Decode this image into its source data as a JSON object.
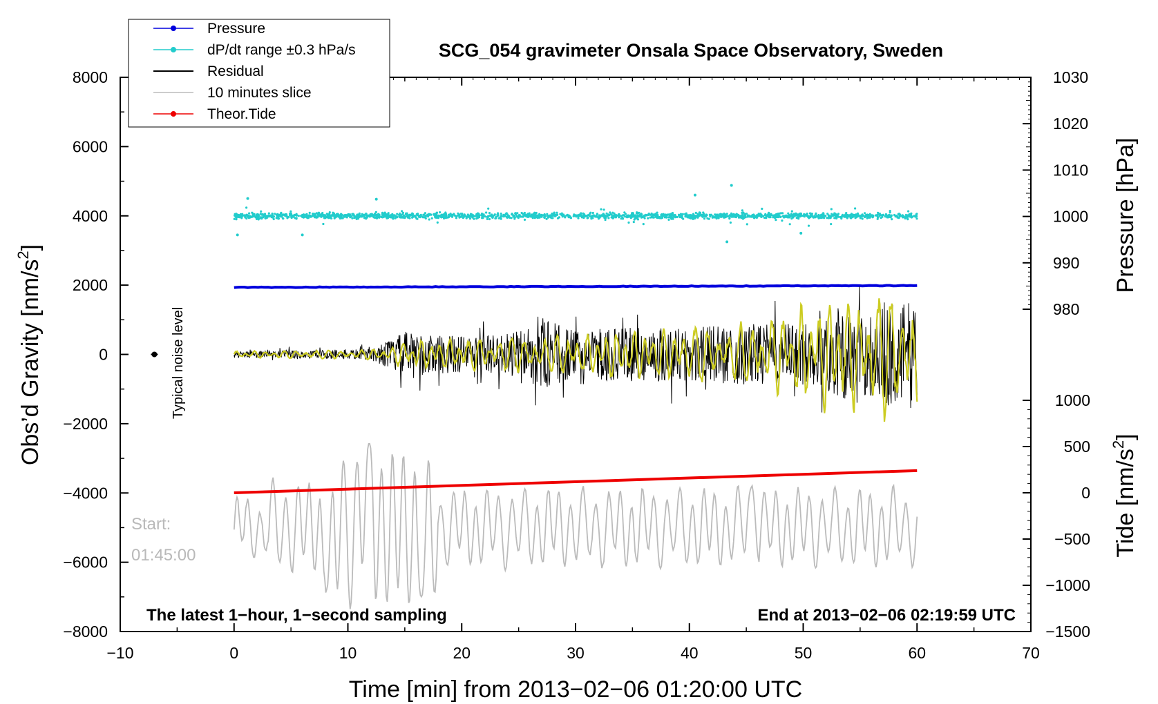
{
  "chart_data": {
    "type": "line",
    "title": "SCG_054 gravimeter Onsala Space Observatory, Sweden",
    "xlabel": "Time [min] from 2013−02−06 01:20:00 UTC",
    "ylabel_left": "Obs’d Gravity [nm/s",
    "ylabel_left_sup": "2",
    "ylabel_left_tail": "]",
    "ylabel_right_pressure": "Pressure [hPa]",
    "ylabel_right_tide": "Tide [nm/s",
    "ylabel_right_tide_sup": "2",
    "ylabel_right_tide_tail": "]",
    "xlim": [
      -10,
      70
    ],
    "ylim": [
      -8000,
      8000
    ],
    "pressure_lim": [
      980,
      1030
    ],
    "tide_lim": [
      -1500,
      1000
    ],
    "x_ticks": [
      -10,
      0,
      10,
      20,
      30,
      40,
      50,
      60,
      70
    ],
    "x_tick_labels": [
      "−10",
      "0",
      "10",
      "20",
      "30",
      "40",
      "50",
      "60",
      "70"
    ],
    "y_ticks": [
      -8000,
      -6000,
      -4000,
      -2000,
      0,
      2000,
      4000,
      6000,
      8000
    ],
    "y_tick_labels": [
      "−8000",
      "−6000",
      "−4000",
      "−2000",
      "0",
      "2000",
      "4000",
      "6000",
      "8000"
    ],
    "pressure_ticks": [
      980,
      990,
      1000,
      1010,
      1020,
      1030
    ],
    "pressure_tick_labels": [
      "980",
      "990",
      "1000",
      "1010",
      "1020",
      "1030"
    ],
    "tide_ticks": [
      -1500,
      -1000,
      -500,
      0,
      500,
      1000
    ],
    "tide_tick_labels": [
      "−1500",
      "−1000",
      "−500",
      "0",
      "500",
      "1000"
    ],
    "legend": [
      {
        "label": "Pressure",
        "color": "#0000dd",
        "marker": true
      },
      {
        "label": "dP/dt range ±0.3 hPa/s",
        "color": "#22cccc",
        "marker": true
      },
      {
        "label": "Residual",
        "color": "#000000",
        "marker": false
      },
      {
        "label": "10 minutes slice",
        "color": "#bbbbbb",
        "marker": false
      },
      {
        "label": "Theor.Tide",
        "color": "#ee0000",
        "marker": true
      }
    ],
    "series": [
      {
        "name": "Pressure",
        "axis": "pressure",
        "color": "#0000dd",
        "x": [
          0,
          60
        ],
        "values": [
          984.7,
          985.1
        ]
      },
      {
        "name": "dP/dt range ±0.3 hPa/s",
        "axis": "gravity",
        "color": "#22cccc",
        "x_range": [
          0,
          60
        ],
        "center": 4000,
        "spread": 120,
        "outliers": [
          {
            "x": 0.3,
            "y": 3450
          },
          {
            "x": 1.2,
            "y": 4500
          },
          {
            "x": 6.0,
            "y": 3450
          },
          {
            "x": 12.5,
            "y": 4480
          },
          {
            "x": 40.5,
            "y": 4600
          },
          {
            "x": 43.3,
            "y": 3250
          },
          {
            "x": 43.7,
            "y": 4880
          },
          {
            "x": 49.8,
            "y": 3500
          }
        ]
      },
      {
        "name": "Residual",
        "axis": "gravity",
        "color": "#000000",
        "x": [
          0,
          3,
          6,
          9,
          12,
          13.5,
          15,
          18,
          21,
          24,
          26,
          27,
          27.5,
          30,
          33,
          36,
          39,
          42,
          45,
          48,
          51,
          53.5,
          55,
          57,
          58.5,
          60
        ],
        "envelope": [
          150,
          200,
          250,
          250,
          300,
          700,
          1200,
          1000,
          1000,
          1100,
          1400,
          2000,
          1800,
          1200,
          1400,
          1400,
          1500,
          1500,
          1600,
          1600,
          1700,
          2300,
          2000,
          2800,
          2700,
          2900
        ]
      },
      {
        "name": "Residual (smoothed)",
        "axis": "gravity",
        "color": "#cccc22",
        "x": [
          0,
          13,
          15,
          30,
          45,
          53,
          55,
          57,
          60
        ],
        "envelope": [
          100,
          150,
          400,
          600,
          900,
          1700,
          1600,
          1800,
          1900
        ]
      },
      {
        "name": "10 minutes slice",
        "axis": "gravity",
        "color": "#bbbbbb",
        "x_range": [
          0,
          60
        ],
        "center": -5000,
        "extremes": [
          {
            "x": 11.8,
            "y": -2500
          },
          {
            "x": 16.5,
            "y": -7000
          },
          {
            "x": 8.2,
            "y": -6800
          },
          {
            "x": 45.5,
            "y": -3700
          }
        ]
      },
      {
        "name": "Theor.Tide",
        "axis": "tide",
        "color": "#ee0000",
        "x": [
          0,
          60
        ],
        "values": [
          0,
          240
        ]
      },
      {
        "name": "Typical noise level",
        "axis": "gravity",
        "color": "#000000",
        "x": [
          -7
        ],
        "values": [
          0
        ],
        "error": 60
      }
    ],
    "annotations": {
      "noise_label": "Typical noise level",
      "start_label": "Start:",
      "start_time": "01:45:00",
      "bottom_left": "The latest 1−hour, 1−second sampling",
      "bottom_right": "End at 2013−02−06 02:19:59 UTC"
    }
  }
}
